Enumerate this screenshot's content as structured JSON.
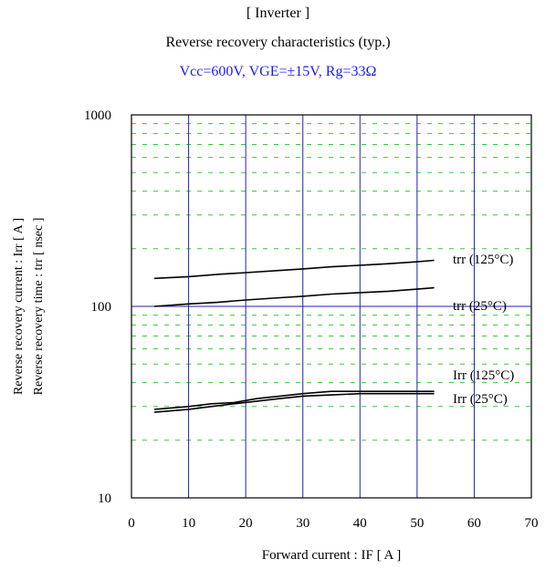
{
  "header": {
    "title": "[ Inverter ]",
    "subtitle": "Reverse recovery characteristics  (typ.)",
    "conditions": "Vcc=600V, VGE=±15V, Rg=33Ω"
  },
  "colors": {
    "conditions_text": "#1a1aff",
    "major_grid": "#2222aa",
    "minor_grid": "#33cc33",
    "curve": "#000000"
  },
  "chart_data": {
    "type": "line",
    "xlabel": "Forward current  :  IF  [ A ]",
    "ylabel_lines": [
      "Reverse recovery current  :  Irr  [ A ]",
      "Reverse recovery time  :  trr  [ nsec ]"
    ],
    "xlim": [
      0,
      70
    ],
    "ylim": [
      10,
      1000
    ],
    "y_scale": "log",
    "x_ticks": [
      0,
      10,
      20,
      30,
      40,
      50,
      60,
      70
    ],
    "y_ticks": [
      10,
      100,
      1000
    ],
    "grid": true,
    "series": [
      {
        "name": "trr (125°C)",
        "x": [
          4,
          10,
          15,
          20,
          26,
          30,
          35,
          40,
          45,
          50,
          53
        ],
        "y": [
          140,
          143,
          147,
          150,
          154,
          157,
          161,
          164,
          167,
          171,
          174
        ]
      },
      {
        "name": "trr (25°C)",
        "x": [
          4,
          10,
          15,
          20,
          26,
          30,
          35,
          40,
          45,
          50,
          53
        ],
        "y": [
          100,
          103,
          105,
          108,
          111,
          113,
          116,
          118,
          120,
          123,
          125
        ]
      },
      {
        "name": "Irr (125°C)",
        "x": [
          4,
          10,
          14,
          18,
          22,
          26,
          30,
          35,
          40,
          45,
          50,
          53
        ],
        "y": [
          29,
          30,
          31,
          31.5,
          33,
          34,
          35,
          36,
          36,
          36,
          36,
          36
        ]
      },
      {
        "name": "Irr (25°C)",
        "x": [
          4,
          10,
          14,
          18,
          22,
          26,
          30,
          35,
          40,
          45,
          50,
          53
        ],
        "y": [
          28,
          29,
          30,
          31,
          32,
          33,
          34,
          34.5,
          35,
          35,
          35,
          35
        ]
      }
    ]
  }
}
